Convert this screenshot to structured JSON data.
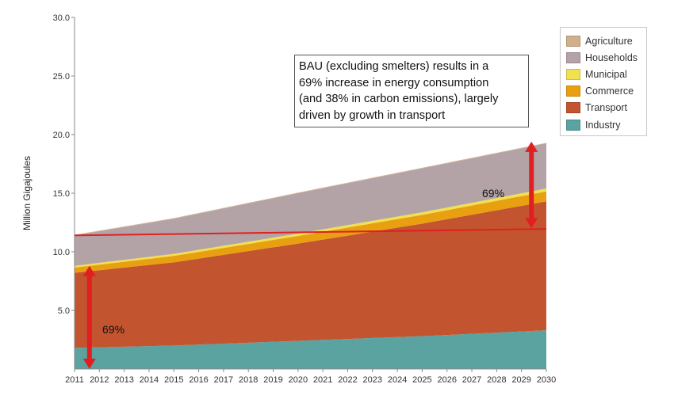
{
  "chart_data": {
    "type": "area",
    "stacked": true,
    "ylabel": "Million Gigajoules",
    "xlabel": "",
    "title": "",
    "ylim": [
      0,
      30
    ],
    "x_range": [
      2011,
      2030
    ],
    "yticks": [
      "5.0",
      "10.0",
      "15.0",
      "20.0",
      "25.0",
      "30.0"
    ],
    "ytick_values": [
      5,
      10,
      15,
      20,
      25,
      30
    ],
    "xticks": [
      "2011",
      "2012",
      "2013",
      "2014",
      "2015",
      "2016",
      "2017",
      "2018",
      "2019",
      "2020",
      "2021",
      "2022",
      "2023",
      "2024",
      "2025",
      "2026",
      "2027",
      "2028",
      "2029",
      "2030"
    ],
    "grid": false,
    "legend_position": "top-right",
    "series": [
      {
        "name": "Industry",
        "color": "#5BA3A0",
        "x": [
          2011,
          2015,
          2020,
          2025,
          2030
        ],
        "values": [
          1.8,
          2.0,
          2.4,
          2.8,
          3.3
        ]
      },
      {
        "name": "Transport",
        "color": "#C2542F",
        "x": [
          2011,
          2015,
          2020,
          2025,
          2030
        ],
        "values": [
          6.4,
          7.1,
          8.3,
          9.6,
          11.0
        ]
      },
      {
        "name": "Commerce",
        "color": "#E8A010",
        "x": [
          2011,
          2015,
          2020,
          2025,
          2030
        ],
        "values": [
          0.45,
          0.55,
          0.65,
          0.75,
          0.85
        ]
      },
      {
        "name": "Municipal",
        "color": "#F1E050",
        "x": [
          2011,
          2015,
          2020,
          2025,
          2030
        ],
        "values": [
          0.15,
          0.17,
          0.2,
          0.22,
          0.25
        ]
      },
      {
        "name": "Households",
        "color": "#B4A3A6",
        "x": [
          2011,
          2015,
          2020,
          2025,
          2030
        ],
        "values": [
          2.6,
          3.0,
          3.45,
          3.75,
          3.85
        ]
      },
      {
        "name": "Agriculture",
        "color": "#D2AF8C",
        "x": [
          2011,
          2015,
          2020,
          2025,
          2030
        ],
        "values": [
          0.05,
          0.05,
          0.05,
          0.05,
          0.05
        ]
      }
    ],
    "reference_line": {
      "color": "#E02020",
      "x": [
        2011,
        2030
      ],
      "values": [
        11.4,
        11.95
      ]
    },
    "arrows": [
      {
        "x": 2011.6,
        "from": 0,
        "to": 8.8,
        "color": "#E02020",
        "label": "69%"
      },
      {
        "x": 2029.4,
        "from": 12.0,
        "to": 19.4,
        "color": "#E02020",
        "label": "69%"
      }
    ],
    "annotation_lines": [
      "BAU (excluding smelters) results in a",
      "69% increase in energy consumption",
      "(and 38% in carbon emissions), largely",
      "driven by growth in transport"
    ]
  }
}
